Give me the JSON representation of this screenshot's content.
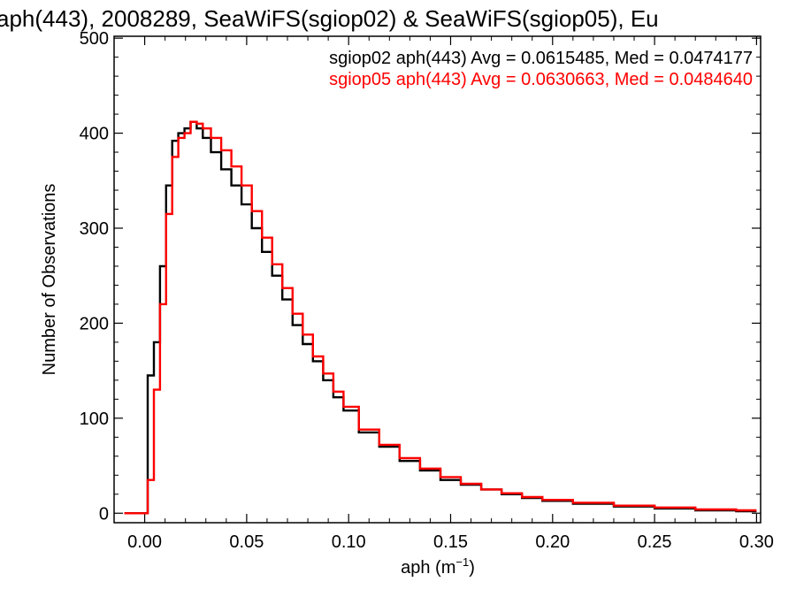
{
  "chart_data": {
    "type": "line",
    "title": "aph(443), 2008289, SeaWiFS(sgiop02) & SeaWiFS(sgiop05), Eu",
    "xlabel_main": "aph (m",
    "xlabel_sup": "−1",
    "xlabel_close": ")",
    "ylabel": "Number of Observations",
    "xlim": [
      -0.015,
      0.302
    ],
    "ylim": [
      -10,
      502
    ],
    "xticks": [
      0.0,
      0.05,
      0.1,
      0.15,
      0.2,
      0.25,
      0.3
    ],
    "xtick_labels": [
      "0.00",
      "0.05",
      "0.10",
      "0.15",
      "0.20",
      "0.25",
      "0.30"
    ],
    "yticks": [
      0,
      100,
      200,
      300,
      400,
      500
    ],
    "ytick_labels": [
      "0",
      "100",
      "200",
      "300",
      "400",
      "500"
    ],
    "grid": false,
    "legend_position": "top-right",
    "series": [
      {
        "name": "sgiop02 aph(443) Avg = 0.0615485, Med = 0.0474177",
        "color": "#000000",
        "x": [
          0.0,
          0.003,
          0.006,
          0.009,
          0.012,
          0.015,
          0.018,
          0.021,
          0.024,
          0.027,
          0.03,
          0.035,
          0.04,
          0.045,
          0.05,
          0.055,
          0.06,
          0.065,
          0.07,
          0.075,
          0.08,
          0.085,
          0.09,
          0.095,
          0.1,
          0.11,
          0.12,
          0.13,
          0.14,
          0.15,
          0.16,
          0.17,
          0.18,
          0.19,
          0.2,
          0.22,
          0.24,
          0.26,
          0.28,
          0.3
        ],
        "y": [
          0,
          145,
          180,
          260,
          345,
          392,
          400,
          405,
          412,
          405,
          395,
          380,
          362,
          345,
          325,
          300,
          275,
          250,
          225,
          198,
          178,
          160,
          140,
          122,
          108,
          85,
          70,
          55,
          45,
          35,
          30,
          25,
          20,
          16,
          13,
          10,
          7,
          5,
          3,
          2
        ]
      },
      {
        "name": "sgiop05 aph(443) Avg = 0.0630663, Med = 0.0484640",
        "color": "#ff0000",
        "x": [
          0.0,
          0.003,
          0.006,
          0.009,
          0.012,
          0.015,
          0.018,
          0.021,
          0.024,
          0.027,
          0.03,
          0.035,
          0.04,
          0.045,
          0.05,
          0.055,
          0.06,
          0.065,
          0.07,
          0.075,
          0.08,
          0.085,
          0.09,
          0.095,
          0.1,
          0.11,
          0.12,
          0.13,
          0.14,
          0.15,
          0.16,
          0.17,
          0.18,
          0.19,
          0.2,
          0.22,
          0.24,
          0.26,
          0.28,
          0.3
        ],
        "y": [
          0,
          35,
          130,
          220,
          315,
          375,
          395,
          400,
          412,
          410,
          405,
          395,
          382,
          365,
          345,
          318,
          290,
          262,
          237,
          210,
          188,
          165,
          147,
          128,
          112,
          88,
          72,
          58,
          47,
          38,
          31,
          25,
          21,
          17,
          14,
          11,
          8,
          6,
          4,
          3
        ]
      }
    ]
  }
}
